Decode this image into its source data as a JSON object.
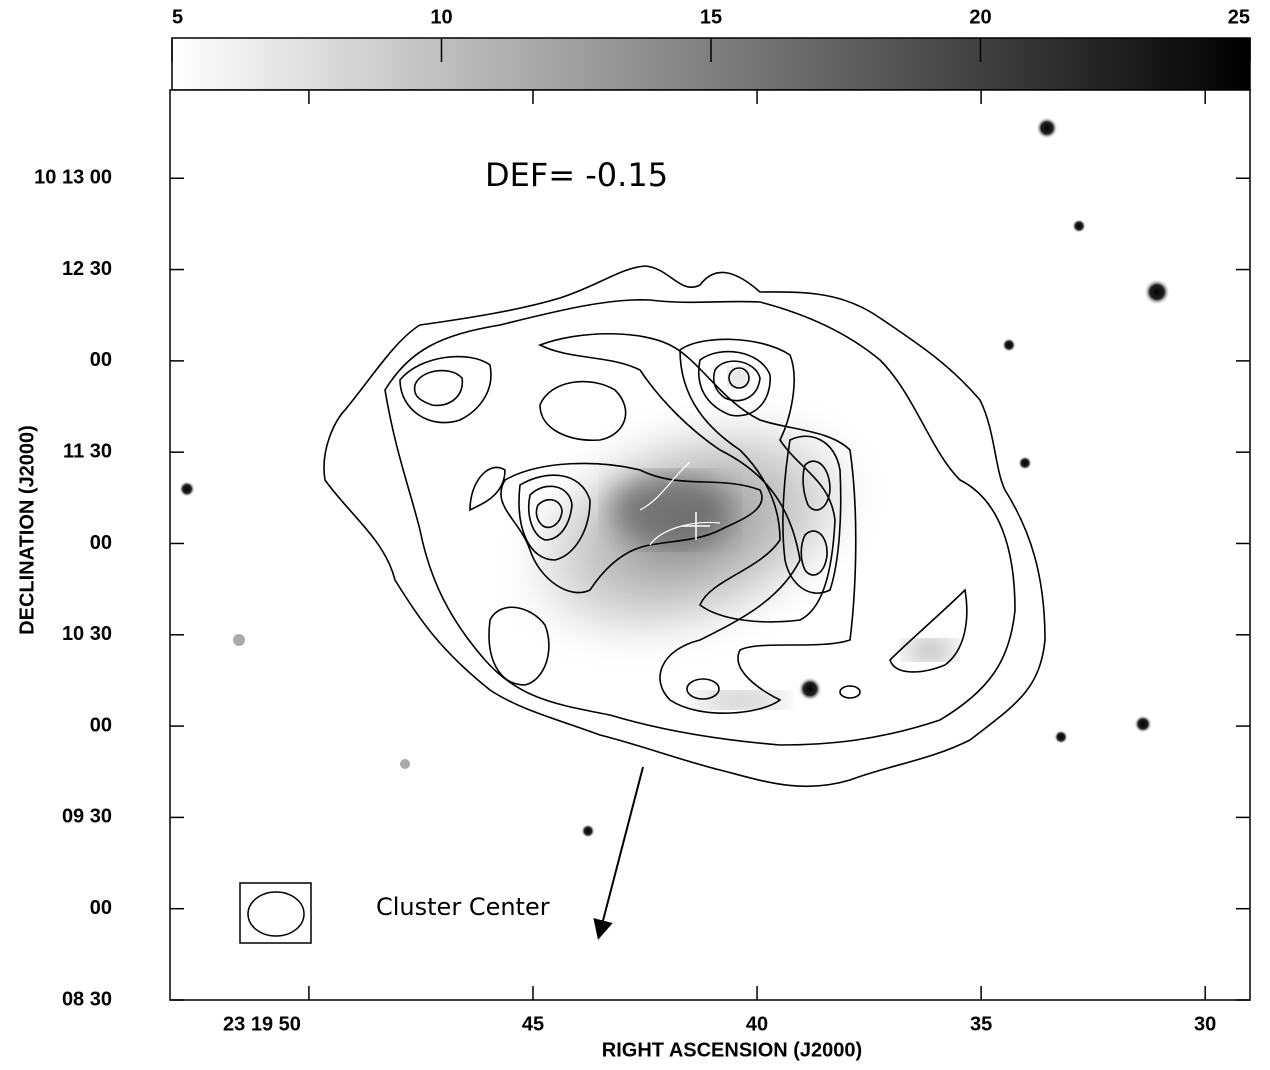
{
  "chart_data": {
    "type": "contour-map",
    "xlabel": "RIGHT ASCENSION (J2000)",
    "ylabel": "DECLINATION (J2000)",
    "xlim": [
      53.1,
      29.0
    ],
    "xticks": [
      {
        "value": 50,
        "label": "23 19 50"
      },
      {
        "value": 45,
        "label": "45"
      },
      {
        "value": 40,
        "label": "40"
      },
      {
        "value": 35,
        "label": "35"
      },
      {
        "value": 30,
        "label": "30"
      }
    ],
    "ylim": [
      510,
      809
    ],
    "yticks": [
      {
        "value": 510,
        "label": "08 30"
      },
      {
        "value": 540,
        "label": "00"
      },
      {
        "value": 570,
        "label": "09 30"
      },
      {
        "value": 600,
        "label": "00"
      },
      {
        "value": 630,
        "label": "10 30"
      },
      {
        "value": 660,
        "label": "00"
      },
      {
        "value": 690,
        "label": "11 30"
      },
      {
        "value": 720,
        "label": "00"
      },
      {
        "value": 750,
        "label": "12 30"
      },
      {
        "value": 780,
        "label": "10 13 00"
      }
    ],
    "colorbar": {
      "lim": [
        5,
        25
      ],
      "ticks": [
        5,
        10,
        15,
        20,
        25
      ]
    },
    "annotations": {
      "deficiency": "DEF= -0.15",
      "arrow_label": "Cluster Center"
    }
  }
}
